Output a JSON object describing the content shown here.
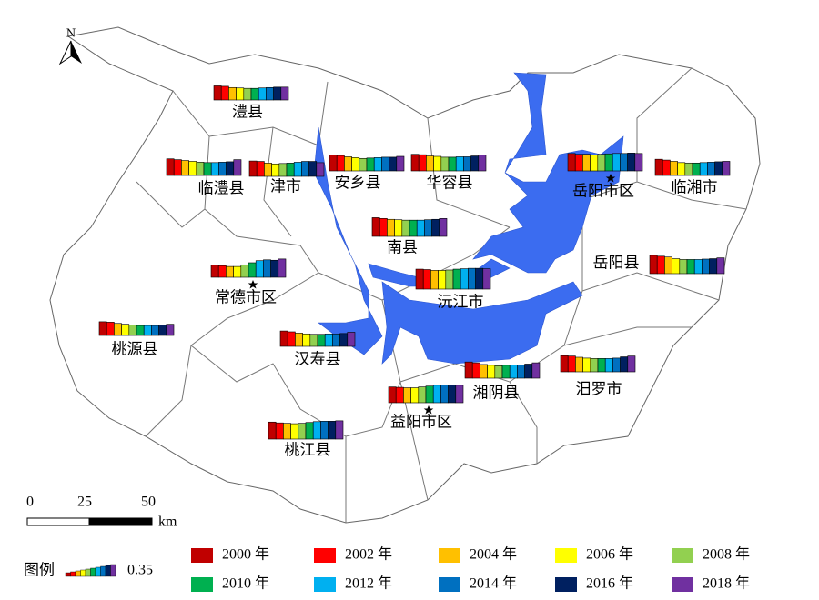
{
  "north": "N",
  "scale_bar": {
    "ticks": [
      "0",
      "25",
      "50"
    ],
    "unit": "km"
  },
  "legend": {
    "title": "图例",
    "scale_value": 0.35,
    "items": [
      {
        "label": "2000 年",
        "color": "#c00000"
      },
      {
        "label": "2002 年",
        "color": "#ff0000"
      },
      {
        "label": "2004 年",
        "color": "#ffc000"
      },
      {
        "label": "2006 年",
        "color": "#ffff00"
      },
      {
        "label": "2008 年",
        "color": "#92d050"
      },
      {
        "label": "2010 年",
        "color": "#00b050"
      },
      {
        "label": "2012 年",
        "color": "#00b0f0"
      },
      {
        "label": "2014 年",
        "color": "#0070c0"
      },
      {
        "label": "2016 年",
        "color": "#002060"
      },
      {
        "label": "2018 年",
        "color": "#7030a0"
      }
    ]
  },
  "counties": [
    {
      "label": "澧县",
      "values": [
        0.34,
        0.33,
        0.3,
        0.29,
        0.28,
        0.28,
        0.29,
        0.3,
        0.31,
        0.31
      ]
    },
    {
      "label": "临澧县",
      "values": [
        0.4,
        0.38,
        0.36,
        0.34,
        0.32,
        0.31,
        0.31,
        0.32,
        0.33,
        0.38
      ]
    },
    {
      "label": "津市",
      "values": [
        0.37,
        0.36,
        0.32,
        0.3,
        0.31,
        0.32,
        0.34,
        0.36,
        0.36,
        0.33
      ]
    },
    {
      "label": "安乡县",
      "values": [
        0.38,
        0.37,
        0.34,
        0.32,
        0.3,
        0.31,
        0.32,
        0.33,
        0.33,
        0.35
      ]
    },
    {
      "label": "华容县",
      "values": [
        0.4,
        0.39,
        0.36,
        0.35,
        0.33,
        0.33,
        0.34,
        0.34,
        0.36,
        0.38
      ]
    },
    {
      "label": "岳阳市区",
      "values": [
        0.42,
        0.4,
        0.4,
        0.38,
        0.4,
        0.41,
        0.42,
        0.42,
        0.43,
        0.42
      ]
    },
    {
      "label": "临湘市",
      "values": [
        0.39,
        0.37,
        0.34,
        0.31,
        0.3,
        0.3,
        0.31,
        0.32,
        0.33,
        0.34
      ]
    },
    {
      "label": "南县",
      "values": [
        0.45,
        0.43,
        0.41,
        0.4,
        0.39,
        0.39,
        0.39,
        0.4,
        0.41,
        0.43
      ]
    },
    {
      "label": "岳阳县",
      "values": [
        0.44,
        0.42,
        0.4,
        0.36,
        0.34,
        0.34,
        0.34,
        0.35,
        0.36,
        0.38
      ]
    },
    {
      "label": "常德市区",
      "values": [
        0.29,
        0.28,
        0.26,
        0.26,
        0.3,
        0.35,
        0.4,
        0.42,
        0.41,
        0.44
      ]
    },
    {
      "label": "沅江市",
      "values": [
        0.48,
        0.47,
        0.45,
        0.45,
        0.46,
        0.48,
        0.49,
        0.5,
        0.5,
        0.49
      ]
    },
    {
      "label": "桃源县",
      "values": [
        0.33,
        0.32,
        0.29,
        0.27,
        0.25,
        0.24,
        0.24,
        0.24,
        0.25,
        0.27
      ]
    },
    {
      "label": "汉寿县",
      "values": [
        0.37,
        0.35,
        0.32,
        0.3,
        0.29,
        0.29,
        0.3,
        0.3,
        0.31,
        0.34
      ]
    },
    {
      "label": "湘阴县",
      "values": [
        0.39,
        0.37,
        0.33,
        0.31,
        0.3,
        0.31,
        0.32,
        0.32,
        0.34,
        0.37
      ]
    },
    {
      "label": "汨罗市",
      "values": [
        0.39,
        0.38,
        0.35,
        0.33,
        0.32,
        0.32,
        0.32,
        0.33,
        0.36,
        0.38
      ]
    },
    {
      "label": "益阳市区",
      "values": [
        0.38,
        0.37,
        0.36,
        0.36,
        0.38,
        0.4,
        0.42,
        0.43,
        0.43,
        0.42
      ]
    },
    {
      "label": "桃江县",
      "values": [
        0.41,
        0.39,
        0.38,
        0.37,
        0.38,
        0.4,
        0.42,
        0.43,
        0.43,
        0.44
      ]
    }
  ]
}
